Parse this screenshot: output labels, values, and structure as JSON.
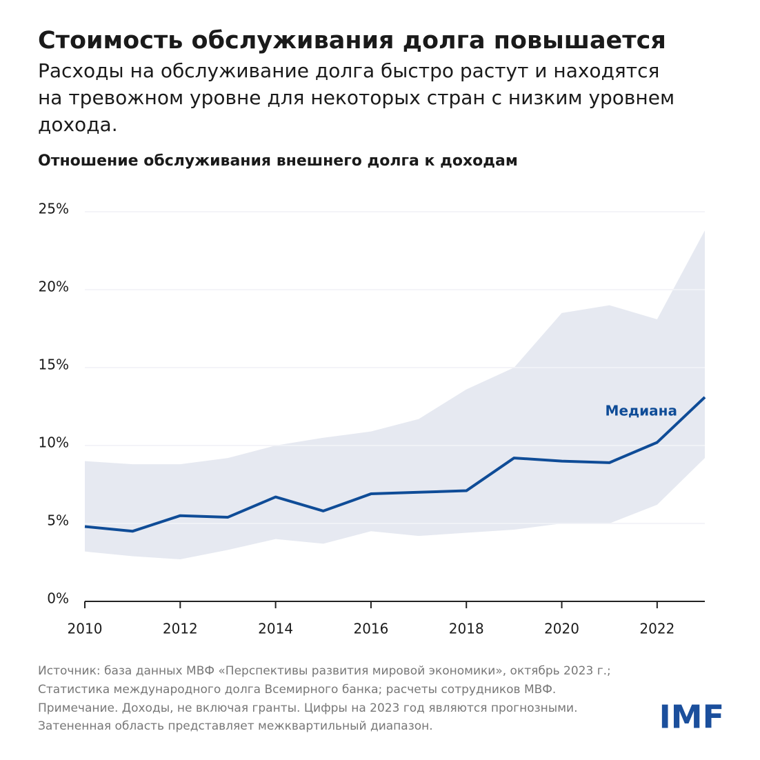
{
  "title": "Стоимость обслуживания долга повышается",
  "subtitle": [
    "Расходы на обслуживание долга быстро растут и находятся",
    "на тревожном уровне для некоторых стран с низким уровнем",
    "дохода."
  ],
  "chart_data": {
    "type": "line",
    "title": "Отношение обслуживания внешнего долга к доходам",
    "x": [
      2010,
      2011,
      2012,
      2013,
      2014,
      2015,
      2016,
      2017,
      2018,
      2019,
      2020,
      2021,
      2022,
      2023
    ],
    "series": [
      {
        "name": "Медиана",
        "color": "#0f4c97",
        "values": [
          4.8,
          4.5,
          5.5,
          5.4,
          6.7,
          5.8,
          6.9,
          7.0,
          7.1,
          9.2,
          9.0,
          8.9,
          10.2,
          13.1
        ]
      }
    ],
    "band": {
      "color": "#e6e9f1",
      "lower": [
        3.2,
        2.9,
        2.7,
        3.3,
        4.0,
        3.7,
        4.5,
        4.2,
        4.4,
        4.6,
        5.0,
        5.0,
        6.2,
        9.2
      ],
      "upper": [
        9.0,
        8.8,
        8.8,
        9.2,
        10.0,
        10.5,
        10.9,
        11.7,
        13.6,
        15.0,
        18.5,
        19.0,
        18.1,
        23.8
      ]
    },
    "xlim": [
      2010,
      2023
    ],
    "xticks": [
      2010,
      2012,
      2014,
      2016,
      2018,
      2020,
      2022
    ],
    "ylim": [
      0,
      25
    ],
    "yticks": [
      {
        "value": 0,
        "label": "0%"
      },
      {
        "value": 5,
        "label": "5%"
      },
      {
        "value": 10,
        "label": "10%"
      },
      {
        "value": 15,
        "label": "15%"
      },
      {
        "value": 20,
        "label": "20%"
      },
      {
        "value": 25,
        "label": "25%"
      }
    ],
    "grid": true
  },
  "footer": [
    "Источник: база данных МВФ «Перспективы развития мировой экономики», октябрь 2023 г.;",
    "Статистика международного долга Всемирного банка; расчеты сотрудников МВФ.",
    "Примечание. Доходы, не включая гранты. Цифры на 2023 год являются прогнозными.",
    "Затененная область представляет межквартильный диапазон."
  ],
  "logo": "IMF"
}
